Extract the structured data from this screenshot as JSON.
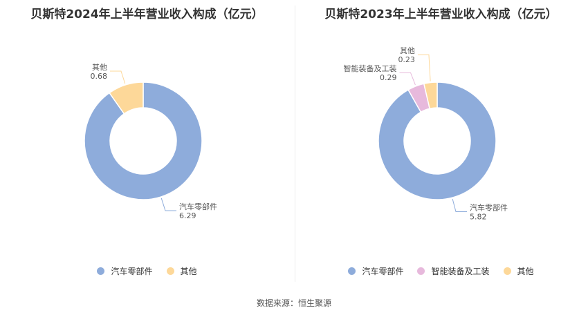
{
  "chart_data": [
    {
      "type": "pie",
      "title": "贝斯特2024年上半年营业收入构成（亿元）",
      "categories": [
        "汽车零部件",
        "其他"
      ],
      "values": [
        6.29,
        0.68
      ],
      "value_labels": [
        "6.29",
        "0.68"
      ],
      "colors": [
        "#8eacdb",
        "#fdd899"
      ]
    },
    {
      "type": "pie",
      "title": "贝斯特2023年上半年营业收入构成（亿元）",
      "categories": [
        "汽车零部件",
        "智能装备及工装",
        "其他"
      ],
      "values": [
        5.82,
        0.29,
        0.23
      ],
      "value_labels": [
        "5.82",
        "0.29",
        "0.23"
      ],
      "colors": [
        "#8eacdb",
        "#e7b9dc",
        "#fdd899"
      ]
    }
  ],
  "source": "数据来源：恒生聚源"
}
